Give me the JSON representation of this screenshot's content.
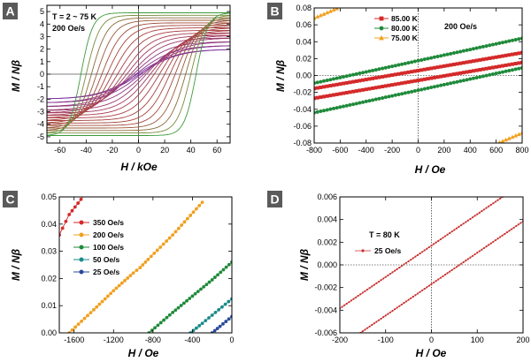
{
  "chart_data": [
    {
      "panel": "A",
      "type": "line",
      "annotations": [
        "T = 2 ~ 75 K",
        "200 Oe/s"
      ],
      "xlabel": "H / kOe",
      "ylabel": "M / Nβ",
      "xlim": [
        -70,
        70
      ],
      "ylim": [
        -5.5,
        5.5
      ],
      "xticks": [
        -60,
        -40,
        -20,
        0,
        20,
        40,
        60
      ],
      "yticks": [
        -5,
        -4,
        -3,
        -2,
        -1,
        0,
        1,
        2,
        3,
        4,
        5
      ],
      "legend": null,
      "series_description": "Family of hysteresis loops; saturation magnetization decreases from about 5 at 2 K (green) to about 2 at 75 K (purple); coercive field shrinks with rising temperature",
      "series": [
        {
          "temperature_index": 0,
          "saturation": 4.9,
          "coercive_field": 44,
          "color": "#3a9a3a"
        },
        {
          "temperature_index": 1,
          "saturation": 4.7,
          "coercive_field": 40,
          "color": "#7a8a3a"
        },
        {
          "temperature_index": 2,
          "saturation": 4.5,
          "coercive_field": 36,
          "color": "#8a6a3a"
        },
        {
          "temperature_index": 3,
          "saturation": 4.3,
          "coercive_field": 32,
          "color": "#9a5a3a"
        },
        {
          "temperature_index": 4,
          "saturation": 4.1,
          "coercive_field": 28,
          "color": "#a04a3a"
        },
        {
          "temperature_index": 5,
          "saturation": 3.9,
          "coercive_field": 24,
          "color": "#a5443a"
        },
        {
          "temperature_index": 6,
          "saturation": 3.7,
          "coercive_field": 20,
          "color": "#a8403e"
        },
        {
          "temperature_index": 7,
          "saturation": 3.5,
          "coercive_field": 16,
          "color": "#aa3e44"
        },
        {
          "temperature_index": 8,
          "saturation": 3.3,
          "coercive_field": 12,
          "color": "#a83c50"
        },
        {
          "temperature_index": 9,
          "saturation": 3.1,
          "coercive_field": 9,
          "color": "#a23a5e"
        },
        {
          "temperature_index": 10,
          "saturation": 2.9,
          "coercive_field": 6,
          "color": "#9a386e"
        },
        {
          "temperature_index": 11,
          "saturation": 2.6,
          "coercive_field": 4,
          "color": "#90367e"
        },
        {
          "temperature_index": 12,
          "saturation": 2.3,
          "coercive_field": 2,
          "color": "#86348e"
        },
        {
          "temperature_index": 13,
          "saturation": 2.0,
          "coercive_field": 1,
          "color": "#7c329c"
        }
      ]
    },
    {
      "panel": "B",
      "type": "line",
      "annotations": [
        "200 Oe/s"
      ],
      "xlabel": "H / Oe",
      "ylabel": "M / Nβ",
      "xlim": [
        -800,
        800
      ],
      "ylim": [
        -0.08,
        0.08
      ],
      "xticks": [
        -800,
        -600,
        -400,
        -200,
        0,
        200,
        400,
        600,
        800
      ],
      "yticks": [
        -0.08,
        -0.06,
        -0.04,
        -0.02,
        0.0,
        0.02,
        0.04,
        0.06,
        0.08
      ],
      "legend": "top-right",
      "series": [
        {
          "name": "85.00 K",
          "color": "#d42a2a",
          "marker": "square",
          "slope": 2.65e-05,
          "intercepts": [
            0.0058,
            -0.0058
          ]
        },
        {
          "name": "80.00 K",
          "color": "#1f8a3a",
          "marker": "circle",
          "slope": 3.32e-05,
          "intercepts": [
            0.0175,
            -0.0175
          ]
        },
        {
          "name": "75.00 K",
          "color": "#f0a020",
          "marker": "triangle",
          "slope": 6.5e-05,
          "intercepts": [
            0.12,
            -0.12
          ]
        }
      ]
    },
    {
      "panel": "C",
      "type": "line",
      "annotations": [],
      "xlabel": "H / Oe",
      "ylabel": "M / Nβ",
      "xlim": [
        -1750,
        0
      ],
      "ylim": [
        0,
        0.05
      ],
      "xticks": [
        -1600,
        -1200,
        -800,
        -400,
        0
      ],
      "yticks": [
        0.0,
        0.01,
        0.02,
        0.03,
        0.04,
        0.05
      ],
      "legend": "top-left",
      "series": [
        {
          "name": "350 Oe/s",
          "color": "#d42a2a",
          "marker": "circle",
          "x": [
            -1750,
            -1650,
            -1500
          ],
          "y": [
            0.036,
            0.0435,
            0.0505
          ]
        },
        {
          "name": "200 Oe/s",
          "color": "#f0a020",
          "marker": "circle",
          "x": [
            -1650,
            -1400,
            -1200,
            -1000,
            -930,
            -850,
            -600,
            -450,
            -300
          ],
          "y": [
            0.0,
            0.0085,
            0.0155,
            0.022,
            0.024,
            0.027,
            0.036,
            0.042,
            0.048
          ]
        },
        {
          "name": "100 Oe/s",
          "color": "#1f8a3a",
          "marker": "circle",
          "x": [
            -840,
            -600,
            -400,
            -200,
            0
          ],
          "y": [
            0.0,
            0.0075,
            0.0135,
            0.0195,
            0.026
          ]
        },
        {
          "name": "50 Oe/s",
          "color": "#1a8a8a",
          "marker": "circle",
          "x": [
            -420,
            -300,
            -200,
            -100,
            0
          ],
          "y": [
            0.0,
            0.0035,
            0.0065,
            0.0095,
            0.0125
          ]
        },
        {
          "name": "25 Oe/s",
          "color": "#2a4a9a",
          "marker": "circle",
          "x": [
            -200,
            -120,
            -60,
            0
          ],
          "y": [
            0.0,
            0.0024,
            0.0042,
            0.006
          ]
        }
      ]
    },
    {
      "panel": "D",
      "type": "line",
      "annotations": [
        "T = 80 K"
      ],
      "xlabel": "H / Oe",
      "ylabel": "M / Nβ",
      "xlim": [
        -200,
        200
      ],
      "ylim": [
        -0.006,
        0.006
      ],
      "xticks": [
        -200,
        -100,
        0,
        100,
        200
      ],
      "yticks": [
        -0.006,
        -0.004,
        -0.002,
        0.0,
        0.002,
        0.004,
        0.006
      ],
      "legend": "top-left",
      "series": [
        {
          "name": "25 Oe/s",
          "color": "#c83030",
          "marker": "dot",
          "slope": 2.77e-05,
          "intercepts": [
            0.0017,
            -0.0017
          ]
        }
      ]
    }
  ],
  "panels": {
    "A": {
      "label": "A",
      "xlabel": "H / kOe",
      "ylabel": "M / Nβ",
      "ann1": "T = 2 ~ 75 K",
      "ann2": "200 Oe/s"
    },
    "B": {
      "label": "B",
      "xlabel": "H / Oe",
      "ylabel": "M / Nβ",
      "ann1": "200 Oe/s"
    },
    "C": {
      "label": "C",
      "xlabel": "H / Oe",
      "ylabel": "M / Nβ"
    },
    "D": {
      "label": "D",
      "xlabel": "H / Oe",
      "ylabel": "M / Nβ",
      "ann1": "T = 80 K"
    }
  }
}
